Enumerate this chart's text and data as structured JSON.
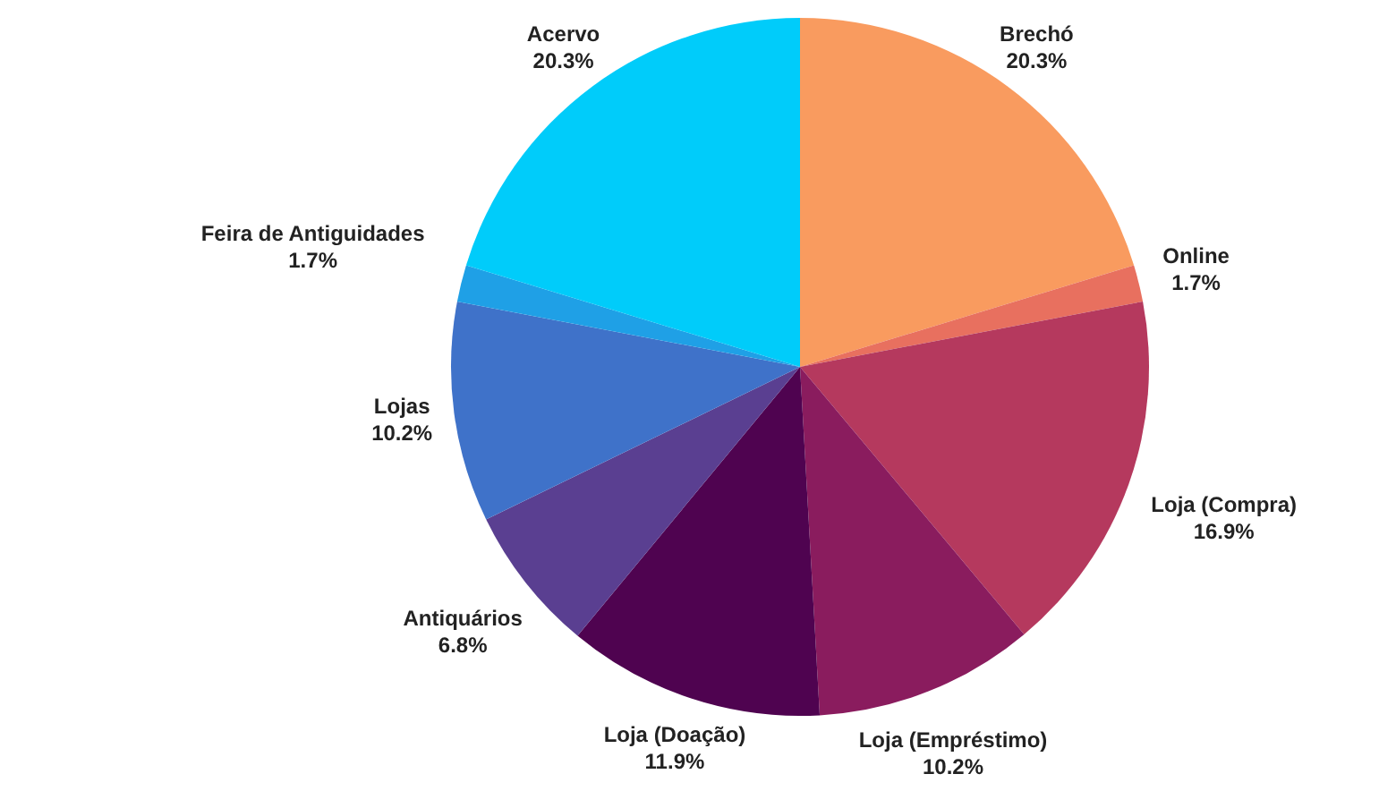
{
  "chart_data": {
    "type": "pie",
    "categories": [
      "Brechó",
      "Online",
      "Loja (Compra)",
      "Loja (Empréstimo)",
      "Loja (Doação)",
      "Antiquários",
      "Lojas",
      "Feira de Antiguidades",
      "Acervo"
    ],
    "values": [
      20.3,
      1.7,
      16.9,
      10.2,
      11.9,
      6.8,
      10.2,
      1.7,
      20.3
    ],
    "value_labels": [
      "20.3%",
      "1.7%",
      "16.9%",
      "10.2%",
      "11.9%",
      "6.8%",
      "10.2%",
      "1.7%",
      "20.3%"
    ],
    "colors": [
      "#f99b5f",
      "#e8705f",
      "#b5395e",
      "#8a1c5e",
      "#4f0350",
      "#5a3f91",
      "#3f72c9",
      "#1fa0e6",
      "#00ccfa"
    ]
  }
}
